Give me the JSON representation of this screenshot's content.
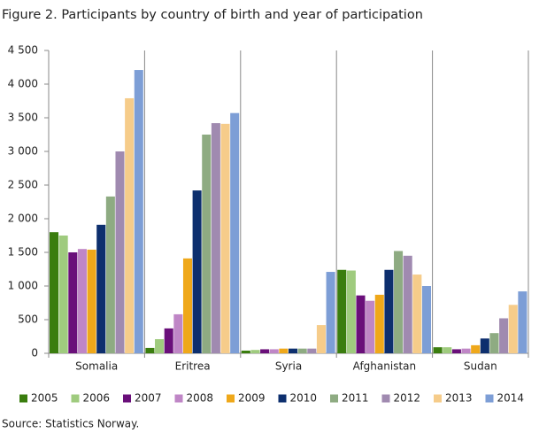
{
  "chart_data": {
    "type": "bar",
    "title": "Figure 2. Participants by country of birth and year of participation",
    "source": "Source: Statistics Norway.",
    "categories": [
      "Somalia",
      "Eritrea",
      "Syria",
      "Afghanistan",
      "Sudan"
    ],
    "series": [
      {
        "name": "2005",
        "color": "#3a7d0e",
        "values": [
          1800,
          80,
          40,
          1240,
          90
        ]
      },
      {
        "name": "2006",
        "color": "#9fcb7e",
        "values": [
          1750,
          210,
          50,
          1230,
          90
        ]
      },
      {
        "name": "2007",
        "color": "#6a0f7a",
        "values": [
          1500,
          370,
          60,
          860,
          60
        ]
      },
      {
        "name": "2008",
        "color": "#bf86c6",
        "values": [
          1550,
          580,
          60,
          780,
          70
        ]
      },
      {
        "name": "2009",
        "color": "#efa81a",
        "values": [
          1540,
          1410,
          70,
          870,
          120
        ]
      },
      {
        "name": "2010",
        "color": "#0d2f6e",
        "values": [
          1910,
          2420,
          70,
          1240,
          220
        ]
      },
      {
        "name": "2011",
        "color": "#8eab82",
        "values": [
          2330,
          3250,
          70,
          1520,
          300
        ]
      },
      {
        "name": "2012",
        "color": "#a08ab0",
        "values": [
          3000,
          3420,
          70,
          1450,
          520
        ]
      },
      {
        "name": "2013",
        "color": "#f6cc8a",
        "values": [
          3790,
          3410,
          420,
          1170,
          720
        ]
      },
      {
        "name": "2014",
        "color": "#7d9ed6",
        "values": [
          4210,
          3570,
          1210,
          1000,
          920
        ]
      }
    ],
    "ylim": [
      0,
      4500
    ],
    "yticks": [
      0,
      500,
      {
        "value": 1000,
        "label": "1 000"
      },
      {
        "value": 1500,
        "label": "1 500"
      },
      {
        "value": 2000,
        "label": "2 000"
      },
      {
        "value": 2500,
        "label": "2 500"
      },
      {
        "value": 3000,
        "label": "3 000"
      },
      {
        "value": 3500,
        "label": "3 500"
      },
      {
        "value": 4000,
        "label": "4 000"
      },
      {
        "value": 4500,
        "label": "4 500"
      }
    ],
    "grid": false
  }
}
